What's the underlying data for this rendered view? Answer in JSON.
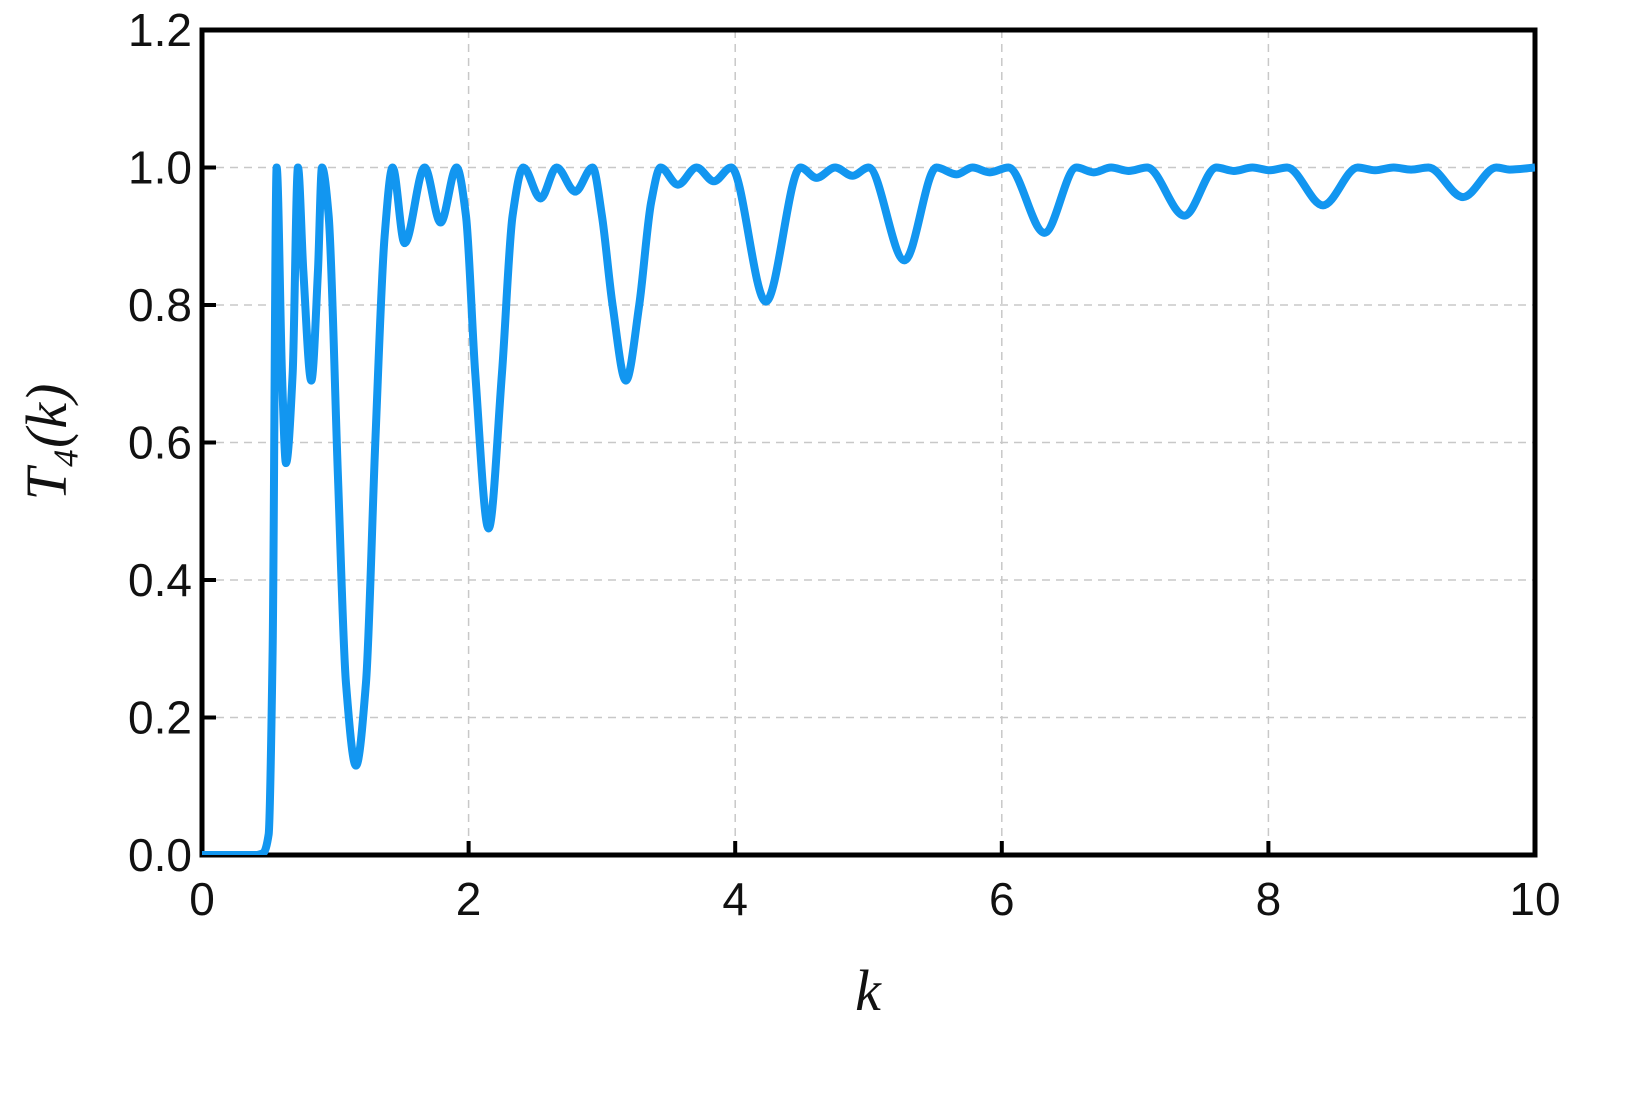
{
  "chart_data": {
    "type": "line",
    "xlabel": "k",
    "ylabel": "T₄(k)",
    "xlim": [
      0,
      10
    ],
    "ylim": [
      0,
      1.2
    ],
    "xticks": [
      0,
      2,
      4,
      6,
      8,
      10
    ],
    "yticks": [
      {
        "value": 0,
        "label": "0.0"
      },
      0.2,
      0.4,
      0.6,
      0.8,
      {
        "value": 1,
        "label": "1.0"
      },
      1.2
    ],
    "grid": true,
    "series": [
      {
        "color": "#1296f0",
        "x": [
          0,
          0.4,
          0.46,
          0.5,
          0.53,
          0.56,
          0.6,
          0.63,
          0.68,
          0.72,
          0.76,
          0.82,
          0.87,
          0.9,
          0.95,
          1.02,
          1.08,
          1.155,
          1.23,
          1.3,
          1.37,
          1.43,
          1.52,
          1.67,
          1.79,
          1.91,
          1.98,
          2.05,
          2.15,
          2.25,
          2.33,
          2.41,
          2.54,
          2.66,
          2.8,
          2.93,
          3.0,
          3.08,
          3.18,
          3.28,
          3.37,
          3.44,
          3.57,
          3.71,
          3.84,
          3.97,
          4.23,
          4.49,
          4.61,
          4.75,
          4.88,
          5.0,
          5.27,
          5.51,
          5.66,
          5.78,
          5.91,
          6.05,
          6.32,
          6.56,
          6.69,
          6.82,
          6.95,
          7.09,
          7.37,
          7.61,
          7.74,
          7.88,
          8.01,
          8.14,
          8.41,
          8.67,
          8.8,
          8.94,
          9.07,
          9.2,
          9.46,
          9.71,
          9.81,
          10
        ],
        "values": [
          0,
          0,
          0.003,
          0.03,
          0.3,
          1.0,
          0.7,
          0.57,
          0.7,
          1.0,
          0.85,
          0.69,
          0.85,
          1.0,
          0.93,
          0.55,
          0.25,
          0.13,
          0.25,
          0.6,
          0.9,
          1.0,
          0.89,
          1.0,
          0.92,
          1.0,
          0.93,
          0.7,
          0.475,
          0.7,
          0.93,
          1.0,
          0.955,
          1.0,
          0.965,
          1.0,
          0.93,
          0.8,
          0.69,
          0.8,
          0.95,
          1.0,
          0.975,
          1.0,
          0.98,
          1.0,
          0.805,
          1.0,
          0.985,
          1.0,
          0.988,
          1.0,
          0.865,
          1.0,
          0.99,
          1.0,
          0.993,
          1.0,
          0.905,
          1.0,
          0.993,
          1.0,
          0.995,
          1.0,
          0.93,
          1.0,
          0.995,
          1.0,
          0.996,
          1.0,
          0.945,
          1.0,
          0.996,
          1.0,
          0.997,
          1.0,
          0.957,
          1.0,
          0.997,
          1.0
        ]
      }
    ]
  }
}
